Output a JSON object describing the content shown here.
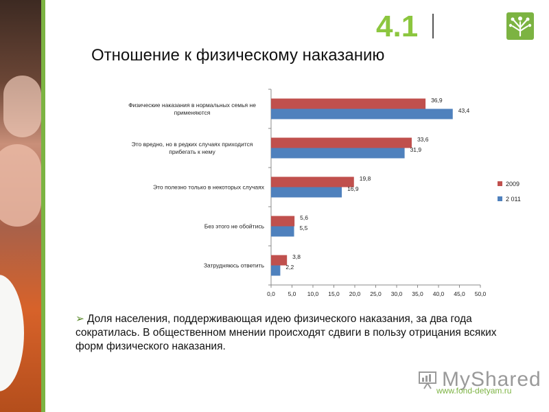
{
  "header": {
    "section_number": "4.1",
    "title": "Отношение к физическому наказанию"
  },
  "colors": {
    "accent_green": "#7cb342",
    "series_2009": "#c0504d",
    "series_2011": "#4f81bd"
  },
  "chart_data": {
    "type": "bar",
    "orientation": "horizontal",
    "categories": [
      "Физические наказания в нормальных семья не применяются",
      "Это вредно, но в редких случаях приходится прибегать к нему",
      "Это полезно только в некоторых случаях",
      "Без этого не обойтись",
      "Затрудняюсь ответить"
    ],
    "series": [
      {
        "name": "2009",
        "values": [
          36.9,
          33.6,
          19.8,
          5.6,
          3.8
        ],
        "labels": [
          "36,9",
          "33,6",
          "19,8",
          "5,6",
          "3,8"
        ]
      },
      {
        "name": "2 011",
        "values": [
          43.4,
          31.9,
          16.9,
          5.5,
          2.2
        ],
        "labels": [
          "43,4",
          "31,9",
          "16,9",
          "5,5",
          "2,2"
        ]
      }
    ],
    "xlim": [
      0,
      50
    ],
    "xticks": [
      0,
      5,
      10,
      15,
      20,
      25,
      30,
      35,
      40,
      45,
      50
    ],
    "xtick_labels": [
      "0,0",
      "5,0",
      "10,0",
      "15,0",
      "20,0",
      "25,0",
      "30,0",
      "35,0",
      "40,0",
      "45,0",
      "50,0"
    ],
    "legend_position": "right",
    "grid": false
  },
  "bullet": {
    "arrow": "➢",
    "text": "Доля населения, поддерживающая идею физического наказания, за два года сократилась. В общественном мнении происходят сдвиги в пользу отрицания всяких форм физического наказания."
  },
  "footer": {
    "watermark": "MyShared",
    "url": "www.fond-detyam.ru"
  }
}
